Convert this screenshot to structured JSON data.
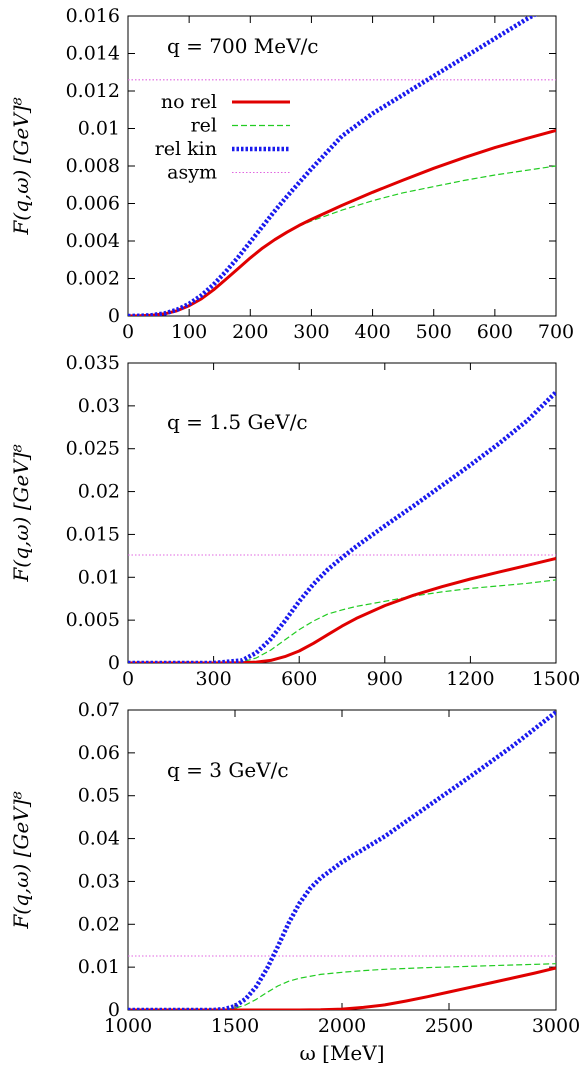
{
  "chart_data": [
    {
      "type": "line",
      "annotation": "q = 700 MeV/c",
      "ylabel": "F(q,ω) [GeV]⁸",
      "xlabel": "",
      "xlim": [
        0,
        700
      ],
      "ylim": [
        0,
        0.016
      ],
      "xticks": [
        "0",
        "100",
        "200",
        "300",
        "400",
        "500",
        "600",
        "700"
      ],
      "yticks": [
        "0",
        "0.002",
        "0.004",
        "0.006",
        "0.008",
        "0.01",
        "0.012",
        "0.014",
        "0.016"
      ],
      "legend": "top-left",
      "series": [
        {
          "name": "no rel",
          "color": "#e00000",
          "style": "solid",
          "x": [
            0,
            20,
            40,
            60,
            80,
            100,
            120,
            140,
            160,
            180,
            200,
            220,
            240,
            260,
            280,
            300,
            350,
            400,
            450,
            500,
            550,
            600,
            650,
            700
          ],
          "y": [
            0,
            1e-05,
            4e-05,
            0.00012,
            0.00028,
            0.00055,
            0.00092,
            0.0014,
            0.00195,
            0.00253,
            0.0031,
            0.00362,
            0.00407,
            0.00447,
            0.00483,
            0.00515,
            0.0059,
            0.0066,
            0.00725,
            0.00788,
            0.00845,
            0.00898,
            0.00945,
            0.0099
          ]
        },
        {
          "name": "rel",
          "color": "#22cc22",
          "style": "dashed",
          "x": [
            0,
            20,
            40,
            60,
            80,
            100,
            120,
            140,
            160,
            180,
            200,
            220,
            240,
            260,
            280,
            300,
            350,
            400,
            450,
            500,
            550,
            600,
            650,
            700
          ],
          "y": [
            0,
            1e-05,
            4e-05,
            0.00012,
            0.00029,
            0.00057,
            0.00095,
            0.00143,
            0.00198,
            0.00256,
            0.00313,
            0.00365,
            0.0041,
            0.00448,
            0.0048,
            0.00507,
            0.00565,
            0.00615,
            0.00657,
            0.0069,
            0.00723,
            0.00752,
            0.00776,
            0.008
          ]
        },
        {
          "name": "rel kin",
          "color": "#1a1aee",
          "style": "dotted",
          "x": [
            0,
            20,
            40,
            60,
            80,
            100,
            120,
            140,
            160,
            180,
            200,
            220,
            240,
            260,
            280,
            300,
            350,
            400,
            450,
            500,
            550,
            600,
            650,
            700
          ],
          "y": [
            0,
            1e-05,
            5e-05,
            0.00014,
            0.00033,
            0.00065,
            0.0011,
            0.00168,
            0.00237,
            0.00313,
            0.00395,
            0.00478,
            0.0056,
            0.00638,
            0.00712,
            0.00785,
            0.0096,
            0.0108,
            0.0118,
            0.0128,
            0.0138,
            0.0148,
            0.0158,
            0.0167
          ]
        },
        {
          "name": "asym",
          "color": "#e066e0",
          "style": "dotted-thin",
          "x": [
            0,
            700
          ],
          "y": [
            0.0126,
            0.0126
          ]
        }
      ]
    },
    {
      "type": "line",
      "annotation": "q = 1.5 GeV/c",
      "ylabel": "F(q,ω) [GeV]⁸",
      "xlabel": "",
      "xlim": [
        0,
        1500
      ],
      "ylim": [
        0,
        0.035
      ],
      "xticks": [
        "0",
        "300",
        "600",
        "900",
        "1200",
        "1500"
      ],
      "yticks": [
        "0",
        "0.005",
        "0.01",
        "0.015",
        "0.02",
        "0.025",
        "0.03",
        "0.035"
      ],
      "series": [
        {
          "name": "no rel",
          "color": "#e00000",
          "style": "solid",
          "x": [
            0,
            300,
            400,
            450,
            500,
            550,
            600,
            650,
            700,
            750,
            800,
            900,
            1000,
            1100,
            1200,
            1300,
            1400,
            1500
          ],
          "y": [
            0,
            0,
            2e-05,
            0.0001,
            0.0003,
            0.00075,
            0.0014,
            0.0023,
            0.0033,
            0.0043,
            0.0052,
            0.0067,
            0.0079,
            0.0089,
            0.0098,
            0.0106,
            0.0114,
            0.0122
          ]
        },
        {
          "name": "rel",
          "color": "#22cc22",
          "style": "dashed",
          "x": [
            0,
            300,
            400,
            450,
            500,
            550,
            600,
            650,
            700,
            750,
            800,
            900,
            1000,
            1100,
            1200,
            1300,
            1400,
            1500
          ],
          "y": [
            0,
            0,
            0.0001,
            0.0006,
            0.0015,
            0.0027,
            0.0039,
            0.0049,
            0.0057,
            0.0062,
            0.0066,
            0.0072,
            0.0078,
            0.0083,
            0.0087,
            0.009,
            0.0093,
            0.0097
          ]
        },
        {
          "name": "rel kin",
          "color": "#1a1aee",
          "style": "dotted",
          "x": [
            0,
            300,
            400,
            450,
            500,
            550,
            600,
            650,
            700,
            750,
            800,
            900,
            1000,
            1100,
            1200,
            1300,
            1400,
            1500
          ],
          "y": [
            0,
            0,
            0.0003,
            0.0012,
            0.0028,
            0.0049,
            0.0072,
            0.0092,
            0.0109,
            0.0123,
            0.0136,
            0.016,
            0.0183,
            0.0207,
            0.0231,
            0.0256,
            0.0283,
            0.0316
          ]
        },
        {
          "name": "asym",
          "color": "#e066e0",
          "style": "dotted-thin",
          "x": [
            0,
            1500
          ],
          "y": [
            0.0126,
            0.0126
          ]
        }
      ]
    },
    {
      "type": "line",
      "annotation": "q = 3 GeV/c",
      "ylabel": "F(q,ω) [GeV]⁸",
      "xlabel": "ω [MeV]",
      "xlim": [
        1000,
        3000
      ],
      "ylim": [
        0,
        0.07
      ],
      "xticks": [
        "1000",
        "1500",
        "2000",
        "2500",
        "3000"
      ],
      "yticks": [
        "0",
        "0.01",
        "0.02",
        "0.03",
        "0.04",
        "0.05",
        "0.06",
        "0.07"
      ],
      "series": [
        {
          "name": "no rel",
          "color": "#e00000",
          "style": "solid",
          "x": [
            1000,
            1800,
            1900,
            2000,
            2100,
            2200,
            2300,
            2400,
            2500,
            2600,
            2700,
            2800,
            2900,
            3000
          ],
          "y": [
            0,
            0,
            5e-05,
            0.0002,
            0.0006,
            0.0012,
            0.0021,
            0.0031,
            0.0042,
            0.0053,
            0.0064,
            0.0075,
            0.0086,
            0.0098
          ]
        },
        {
          "name": "rel",
          "color": "#22cc22",
          "style": "dashed",
          "x": [
            1000,
            1400,
            1500,
            1550,
            1600,
            1650,
            1700,
            1750,
            1800,
            1900,
            2000,
            2100,
            2200,
            2400,
            2600,
            2800,
            3000
          ],
          "y": [
            0,
            0,
            0.0004,
            0.0012,
            0.0025,
            0.0041,
            0.0056,
            0.0067,
            0.0074,
            0.0083,
            0.0088,
            0.0092,
            0.0095,
            0.0099,
            0.0102,
            0.0105,
            0.0108
          ]
        },
        {
          "name": "rel kin",
          "color": "#1a1aee",
          "style": "dotted",
          "x": [
            1000,
            1400,
            1450,
            1500,
            1550,
            1600,
            1650,
            1700,
            1750,
            1800,
            1850,
            1900,
            2000,
            2200,
            2400,
            2600,
            2800,
            3000
          ],
          "y": [
            0,
            0,
            0.0002,
            0.0009,
            0.0026,
            0.0055,
            0.0097,
            0.0148,
            0.0202,
            0.0248,
            0.0283,
            0.0308,
            0.0345,
            0.0405,
            0.0475,
            0.0545,
            0.0617,
            0.0695
          ]
        },
        {
          "name": "asym",
          "color": "#e066e0",
          "style": "dotted-thin",
          "x": [
            1000,
            3000
          ],
          "y": [
            0.0126,
            0.0126
          ]
        }
      ]
    }
  ]
}
